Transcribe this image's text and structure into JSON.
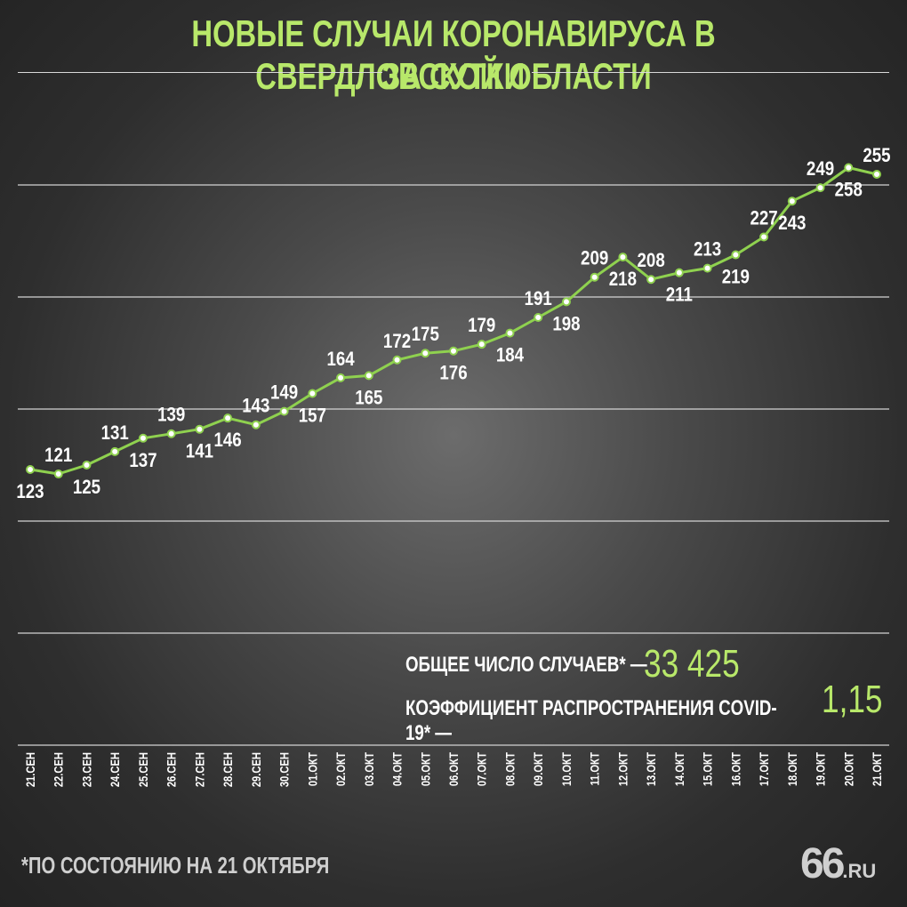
{
  "title": {
    "line1": "НОВЫЕ СЛУЧАИ КОРОНАВИРУСА В СВЕРДЛОВСКОЙ ОБЛАСТИ",
    "line2": "ЗА СУТКИ"
  },
  "stats": {
    "total_label": "ОБЩЕЕ ЧИСЛО СЛУЧАЕВ* —",
    "total_value": "33 425",
    "coef_label": "КОЭФФИЦИЕНТ РАСПРОСТРАНЕНИЯ COVID-19* —",
    "coef_value": "1,15"
  },
  "footnote": "*ПО СОСТОЯНИЮ НА 21 ОКТЯБРЯ",
  "logo": {
    "main": "66",
    "suffix": ".RU"
  },
  "colors": {
    "accent": "#b8e86a",
    "line": "#8fd14f",
    "text": "#ffffff"
  },
  "chart_data": {
    "type": "line",
    "categories": [
      "21.СЕН",
      "22.СЕН",
      "23.СЕН",
      "24.СЕН",
      "25.СЕН",
      "26.СЕН",
      "27.СЕН",
      "28.СЕН",
      "29.СЕН",
      "30.СЕН",
      "01.ОКТ",
      "02.ОКТ",
      "03.ОКТ",
      "04.ОКТ",
      "05.ОКТ",
      "06.ОКТ",
      "07.ОКТ",
      "08.ОКТ",
      "09.ОКТ",
      "10.ОКТ",
      "11.ОКТ",
      "12.ОКТ",
      "13.ОКТ",
      "14.ОКТ",
      "15.ОКТ",
      "16.ОКТ",
      "17.ОКТ",
      "18.ОКТ",
      "19.ОКТ",
      "20.ОКТ",
      "21.ОКТ"
    ],
    "values": [
      123,
      121,
      125,
      131,
      137,
      139,
      141,
      146,
      143,
      149,
      157,
      164,
      165,
      172,
      175,
      176,
      179,
      184,
      191,
      198,
      209,
      218,
      208,
      211,
      213,
      219,
      227,
      243,
      249,
      258,
      255
    ],
    "label_position": [
      "below",
      "above",
      "below",
      "above",
      "below",
      "above",
      "below",
      "below",
      "above",
      "above",
      "below",
      "above",
      "below",
      "above",
      "above",
      "below",
      "above",
      "below",
      "above",
      "below",
      "above",
      "below",
      "above",
      "below",
      "above",
      "below",
      "above",
      "below",
      "above",
      "below",
      "above"
    ],
    "ylim": [
      50,
      300
    ],
    "grid": true,
    "title": "НОВЫЕ СЛУЧАИ КОРОНАВИРУСА В СВЕРДЛОВСКОЙ ОБЛАСТИ ЗА СУТКИ"
  }
}
